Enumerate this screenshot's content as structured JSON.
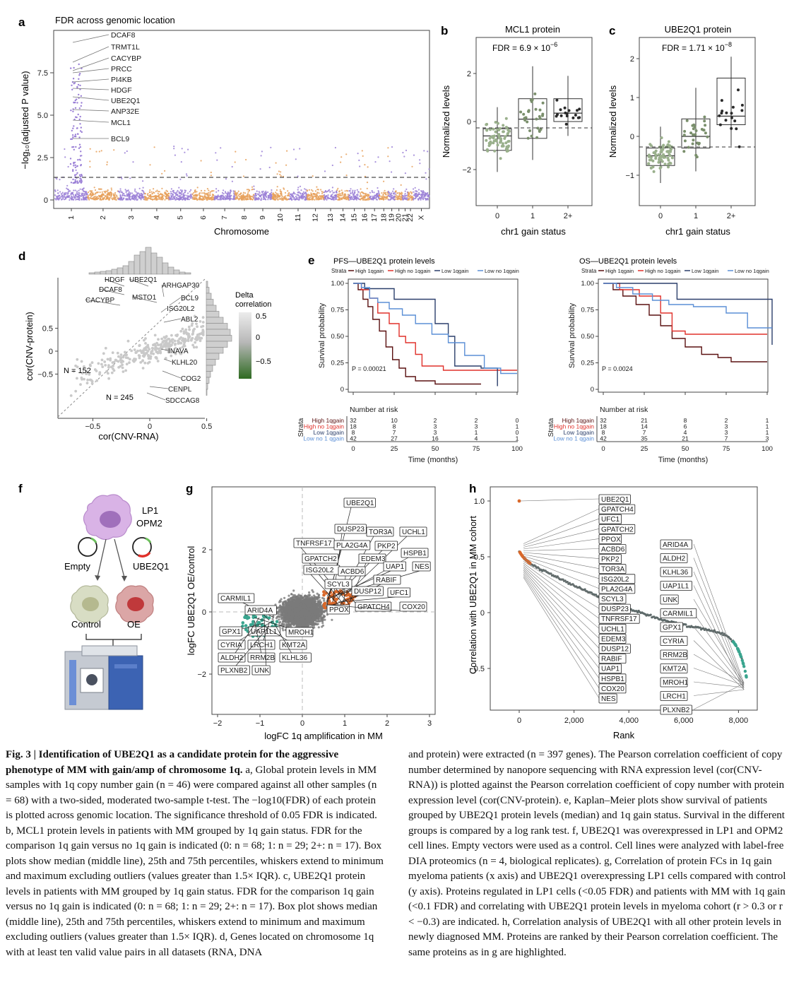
{
  "figure": {
    "caption": {
      "lead": "Fig. 3 | Identification of UBE2Q1 as a candidate protein for the aggressive phenotype of MM with gain/amp of chromosome 1q.",
      "left_body": "a, Global protein levels in MM samples with 1q copy number gain (n = 46) were compared against all other samples (n = 68) with a two-sided, moderated two-sample t-test. The −log10(FDR) of each protein is plotted across genomic location. The significance threshold of 0.05 FDR is indicated. b, MCL1 protein levels in patients with MM grouped by 1q gain status. FDR for the comparison 1q gain versus no 1q gain is indicated (0: n = 68; 1: n = 29; 2+: n = 17). Box plots show median (middle line), 25th and 75th percentiles, whiskers extend to minimum and maximum excluding outliers (values greater than 1.5× IQR). c, UBE2Q1 protein levels in patients with MM grouped by 1q gain status. FDR for the comparison 1q gain versus no 1q gain is indicated (0: n = 68; 1: n = 29; 2+: n = 17). Box plot shows median (middle line), 25th and 75th percentiles, whiskers extend to minimum and maximum excluding outliers (values greater than 1.5× IQR). d, Genes located on chromosome 1q with at least ten valid value pairs in all datasets (RNA, DNA",
      "right_body": "and protein) were extracted (n = 397 genes). The Pearson correlation coefficient of copy number determined by nanopore sequencing with RNA expression level (cor(CNV-RNA)) is plotted against the Pearson correlation coefficient of copy number with protein expression level (cor(CNV-protein). e, Kaplan–Meier plots show survival of patients grouped by UBE2Q1 protein levels (median) and 1q gain status. Survival in the different groups is compared by a log rank test. f, UBE2Q1 was overexpressed in LP1 and OPM2 cell lines. Empty vectors were used as a control. Cell lines were analyzed with label-free DIA proteomics (n = 4, biological replicates). g, Correlation of protein FCs in 1q gain myeloma patients (x axis) and UBE2Q1 overexpressing LP1 cells compared with control (y axis). Proteins regulated in LP1 cells (<0.05 FDR) and patients with MM with 1q gain (<0.1 FDR) and correlating with UBE2Q1 protein levels in myeloma cohort (r > 0.3 or r < −0.3) are indicated. h, Correlation analysis of UBE2Q1 with all other protein levels in newly diagnosed MM. Proteins are ranked by their Pearson correlation coefficient. The same proteins as in g are highlighted."
    },
    "colors": {
      "purple": "#9a7fd6",
      "orange": "#e6a05a",
      "green": "#3f7a2e",
      "teal": "#3aa58f",
      "dark_orange": "#d9682a",
      "grey": "#777777",
      "km_dark": "#5a1010",
      "km_red": "#e0302a",
      "km_navy": "#2b3f6b",
      "km_blue": "#5b8fd6"
    }
  },
  "panel_a": {
    "label": "a",
    "title": "FDR across genomic location",
    "ylabel": "−log₁₀(adjusted P value)",
    "xlabel": "Chromosome",
    "xticks": [
      "1",
      "2",
      "3",
      "4",
      "5",
      "6",
      "7",
      "8",
      "9",
      "10",
      "11",
      "12",
      "13",
      "14",
      "15",
      "16",
      "17",
      "18",
      "19",
      "20",
      "21",
      "22",
      "X"
    ],
    "yticks": [
      "0",
      "2.5",
      "5.0",
      "7.5"
    ],
    "gene_labels": [
      "DCAF8",
      "TRMT1L",
      "CACYBP",
      "PRCC",
      "PI4KB",
      "HDGF",
      "UBE2Q1",
      "ANP32E",
      "MCL1",
      "BCL9"
    ]
  },
  "panel_b": {
    "label": "b",
    "title": "MCL1 protein",
    "fdr_text": "FDR = 6.9 × 10",
    "fdr_exp": "−6",
    "ylabel": "Normalized levels",
    "xlabel": "chr1 gain status",
    "groups": [
      "0",
      "1",
      "2+"
    ],
    "yticks": [
      "2",
      "0",
      "−2"
    ]
  },
  "panel_c": {
    "label": "c",
    "title": "UBE2Q1 protein",
    "fdr_text": "FDR = 1.71 × 10",
    "fdr_exp": "−8",
    "ylabel": "Normalized levels",
    "xlabel": "chr1 gain status",
    "groups": [
      "0",
      "1",
      "2+"
    ],
    "yticks": [
      "2",
      "1",
      "0",
      "−1"
    ]
  },
  "panel_d": {
    "label": "d",
    "xlabel": "cor(CNV-RNA)",
    "ylabel": "cor(CNV-protein)",
    "xticks": [
      "−0.5",
      "0",
      "0.5"
    ],
    "yticks": [
      "0.5",
      "0",
      "−0.5"
    ],
    "n_upper": "N = 152",
    "n_lower": "N = 245",
    "legend_title_1": "Delta",
    "legend_title_2": "correlation",
    "legend_ticks": [
      "0.5",
      "0",
      "−0.5"
    ],
    "genes": [
      "HDGF",
      "UBE2Q1",
      "DCAF8",
      "ARHGAP30",
      "CACYBP",
      "MSTO1",
      "BCL9",
      "ISG20L2",
      "ABL2",
      "INAVA",
      "KLHL20",
      "COG2",
      "CENPL",
      "SDCCAG8"
    ]
  },
  "panel_e": {
    "label": "e",
    "left_title": "PFS—UBE2Q1 protein levels",
    "right_title": "OS—UBE2Q1 protein levels",
    "strata_label": "Strata",
    "legend": [
      "High 1qgain",
      "High no 1qgain",
      "Low 1qgain",
      "Low no 1qgain"
    ],
    "ylabel": "Survival probability",
    "yticks": [
      "1.00",
      "0.75",
      "0.50",
      "0.25",
      "0"
    ],
    "xticks": [
      "0",
      "25",
      "50",
      "75",
      "100"
    ],
    "xlabel": "Time (months)",
    "left_p": "P = 0.00021",
    "right_p": "P = 0.0024",
    "risk_title": "Number at risk",
    "risk_strata_axis": "Strata",
    "risk_labels": [
      "High 1qgain",
      "High no 1qgain",
      "Low 1qgain",
      "Low no 1 qgain"
    ],
    "risk_left": [
      [
        "32",
        "10",
        "2",
        "2",
        "0"
      ],
      [
        "18",
        "8",
        "3",
        "3",
        "1"
      ],
      [
        "8",
        "7",
        "3",
        "1",
        "0"
      ],
      [
        "42",
        "27",
        "16",
        "4",
        "1"
      ]
    ],
    "risk_right": [
      [
        "32",
        "21",
        "8",
        "2",
        "1"
      ],
      [
        "18",
        "14",
        "6",
        "3",
        "1"
      ],
      [
        "8",
        "7",
        "4",
        "3",
        "1"
      ],
      [
        "42",
        "35",
        "21",
        "7",
        "3"
      ]
    ]
  },
  "panel_f": {
    "label": "f",
    "cell_lines_1": "LP1",
    "cell_lines_2": "OPM2",
    "empty": "Empty",
    "ube2q1": "UBE2Q1",
    "control": "Control",
    "oe": "OE"
  },
  "panel_g": {
    "label": "g",
    "xlabel": "logFC 1q amplification in MM",
    "ylabel": "logFC UBE2Q1 OE/control",
    "xticks": [
      "−2",
      "−1",
      "0",
      "1",
      "2",
      "3"
    ],
    "yticks": [
      "2",
      "0",
      "−2"
    ],
    "up_genes": [
      "UBE2Q1",
      "DUSP23",
      "TOR3A",
      "UCHL1",
      "TNFRSF17",
      "PLA2G4A",
      "PKP2",
      "HSPB1",
      "GPATCH2",
      "EDEM3",
      "UAP1",
      "NES",
      "ISG20L2",
      "ACBD6",
      "RABIF",
      "SCYL3",
      "DUSP12",
      "UFC1",
      "PPOX",
      "GPATCH4",
      "COX20"
    ],
    "down_genes": [
      "CARMIL1",
      "ARID4A",
      "GPX1",
      "UAP1L1",
      "MROH1",
      "CYRIA",
      "LRCH1",
      "KMT2A",
      "ALDH2",
      "RRM2B",
      "KLHL36",
      "PLXNB2",
      "UNK"
    ]
  },
  "panel_h": {
    "label": "h",
    "xlabel": "Rank",
    "ylabel": "Correlation with UBE2Q1 in MM cohort",
    "xticks": [
      "0",
      "2,000",
      "4,000",
      "6,000",
      "8,000"
    ],
    "yticks": [
      "1.0",
      "0.5",
      "0",
      "−0.5"
    ],
    "up_genes": [
      "UBE2Q1",
      "GPATCH4",
      "UFC1",
      "GPATCH2",
      "PPOX",
      "ACBD6",
      "PKP2",
      "TOR3A",
      "ISG20L2",
      "PLA2G4A",
      "SCYL3",
      "DUSP23",
      "TNFRSF17",
      "UCHL1",
      "EDEM3",
      "DUSP12",
      "RABIF",
      "UAP1",
      "HSPB1",
      "COX20",
      "NES"
    ],
    "down_genes": [
      "ARID4A",
      "ALDH2",
      "KLHL36",
      "UAP1L1",
      "UNK",
      "CARMIL1",
      "GPX1",
      "CYRIA",
      "RRM2B",
      "KMT2A",
      "MROH1",
      "LRCH1",
      "PLXNB2"
    ]
  }
}
